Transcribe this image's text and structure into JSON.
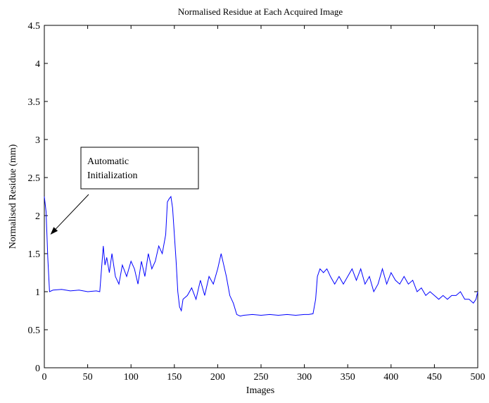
{
  "chart_data": {
    "type": "line",
    "title": "Normalised Residue at Each Acquired Image",
    "xlabel": "Images",
    "ylabel": "Normalised Residue (mm)",
    "xlim": [
      0,
      500
    ],
    "ylim": [
      0,
      4.5
    ],
    "xticks": [
      "0",
      "50",
      "100",
      "150",
      "200",
      "250",
      "300",
      "350",
      "400",
      "450",
      "500"
    ],
    "yticks": [
      "0",
      "0.5",
      "1",
      "1.5",
      "2",
      "2.5",
      "3",
      "3.5",
      "4",
      "4.5"
    ],
    "grid": false,
    "series": [
      {
        "color": "#0000ff",
        "x": [
          0,
          2,
          4,
          6,
          10,
          20,
          30,
          40,
          50,
          60,
          64,
          66,
          68,
          70,
          72,
          75,
          78,
          82,
          86,
          90,
          95,
          100,
          104,
          108,
          112,
          116,
          120,
          124,
          128,
          132,
          136,
          140,
          142,
          144,
          146,
          148,
          150,
          152,
          154,
          156,
          158,
          160,
          165,
          170,
          175,
          180,
          185,
          190,
          195,
          200,
          204,
          207,
          210,
          214,
          218,
          222,
          226,
          230,
          240,
          250,
          260,
          270,
          280,
          290,
          300,
          305,
          310,
          313,
          315,
          318,
          322,
          326,
          330,
          335,
          340,
          345,
          350,
          355,
          360,
          365,
          370,
          375,
          380,
          385,
          390,
          395,
          400,
          405,
          410,
          415,
          420,
          425,
          430,
          435,
          440,
          445,
          450,
          455,
          460,
          465,
          470,
          475,
          480,
          485,
          490,
          495,
          498,
          500
        ],
        "y": [
          2.25,
          2.05,
          1.45,
          1.0,
          1.02,
          1.03,
          1.01,
          1.02,
          1.0,
          1.01,
          1.0,
          1.3,
          1.6,
          1.35,
          1.45,
          1.25,
          1.5,
          1.2,
          1.1,
          1.35,
          1.2,
          1.4,
          1.3,
          1.1,
          1.4,
          1.2,
          1.5,
          1.3,
          1.4,
          1.6,
          1.5,
          1.75,
          2.18,
          2.22,
          2.25,
          2.1,
          1.75,
          1.4,
          1.0,
          0.8,
          0.75,
          0.9,
          0.95,
          1.05,
          0.9,
          1.15,
          0.95,
          1.2,
          1.1,
          1.3,
          1.5,
          1.35,
          1.2,
          0.95,
          0.85,
          0.7,
          0.68,
          0.69,
          0.7,
          0.69,
          0.7,
          0.69,
          0.7,
          0.69,
          0.7,
          0.7,
          0.71,
          0.9,
          1.2,
          1.3,
          1.25,
          1.3,
          1.2,
          1.1,
          1.2,
          1.1,
          1.2,
          1.3,
          1.15,
          1.3,
          1.1,
          1.2,
          1.0,
          1.1,
          1.3,
          1.1,
          1.25,
          1.15,
          1.1,
          1.2,
          1.1,
          1.15,
          1.0,
          1.05,
          0.95,
          1.0,
          0.95,
          0.9,
          0.95,
          0.9,
          0.95,
          0.95,
          1.0,
          0.9,
          0.9,
          0.85,
          0.9,
          1.0
        ]
      }
    ],
    "annotations": [
      {
        "text_lines": [
          "Automatic",
          "Initialization"
        ],
        "points_to": {
          "x": 7,
          "y": 1.75
        }
      }
    ]
  }
}
